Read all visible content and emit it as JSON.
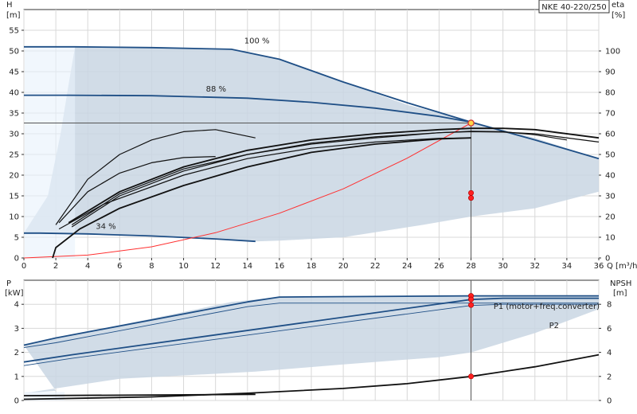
{
  "chart_data": [
    {
      "type": "line",
      "title": "NKE 40-220/250",
      "ylabel": "H",
      "yunit": "[m]",
      "y2label": "eta",
      "y2unit": "[%]",
      "xlabel": "Q",
      "xunit": "[m³/h]",
      "xlim": [
        0,
        36
      ],
      "ylim": [
        0,
        60
      ],
      "y2lim": [
        0,
        120
      ],
      "x_ticks": [
        0,
        2,
        4,
        6,
        8,
        10,
        12,
        14,
        16,
        18,
        20,
        22,
        24,
        26,
        28,
        30,
        32,
        34,
        36
      ],
      "y_ticks": [
        0,
        5,
        10,
        15,
        20,
        25,
        30,
        35,
        40,
        45,
        50,
        55
      ],
      "y2_ticks": [
        0,
        10,
        20,
        30,
        40,
        50,
        60,
        70,
        80,
        90,
        100
      ],
      "grid": true,
      "operating_point": {
        "q": 28,
        "h": 32.6,
        "eta_points": [
          31.4,
          29.0
        ]
      },
      "speed_labels": [
        {
          "text": "100 %",
          "q": 13.8,
          "h": 51.8
        },
        {
          "text": "88 %",
          "q": 11.4,
          "h": 40.2
        },
        {
          "text": "34 %",
          "q": 4.5,
          "h": 7.0
        }
      ],
      "operating_range": {
        "q": [
          0,
          3.2,
          13,
          16,
          20,
          24,
          28,
          32,
          36,
          36,
          32,
          28,
          25,
          20,
          16,
          14.5,
          6,
          0,
          1.5,
          2.3,
          2.8,
          3.2
        ],
        "h": [
          51,
          51,
          50.5,
          48,
          42.5,
          37,
          33,
          29,
          24,
          16,
          12,
          10,
          8,
          5,
          4.2,
          4,
          5.5,
          6,
          15,
          30,
          42,
          51
        ]
      },
      "series": [
        {
          "name": "",
          "role": "head-100",
          "q": [
            0,
            3.2,
            8,
            13,
            16,
            20,
            24,
            28,
            32,
            36
          ],
          "h": [
            51,
            51,
            50.8,
            50.4,
            48,
            42.5,
            37.5,
            32.8,
            28.5,
            24
          ]
        },
        {
          "name": "",
          "role": "head-88",
          "q": [
            0,
            2.8,
            8,
            14,
            18,
            22,
            26,
            28
          ],
          "h": [
            39.3,
            39.3,
            39.2,
            38.6,
            37.6,
            36.2,
            34.2,
            32.8
          ]
        },
        {
          "name": "",
          "role": "head-34",
          "q": [
            0,
            1,
            4,
            8,
            12,
            14.5
          ],
          "h": [
            6,
            6,
            5.8,
            5.3,
            4.6,
            4
          ]
        },
        {
          "name": "",
          "role": "system-curve",
          "q": [
            0,
            4,
            8,
            12,
            16,
            20,
            24,
            28
          ],
          "h": [
            0,
            0.7,
            2.7,
            6.1,
            10.8,
            16.7,
            24.1,
            32.6
          ]
        },
        {
          "name": "",
          "role": "eta",
          "q": [
            2,
            4,
            6,
            8,
            10,
            12,
            14.5
          ],
          "eta": [
            16,
            38,
            50,
            57,
            61,
            62,
            58
          ]
        },
        {
          "name": "",
          "role": "eta",
          "q": [
            2.2,
            4,
            6,
            8,
            10,
            12
          ],
          "eta": [
            17,
            32,
            41,
            46,
            48.5,
            49
          ]
        },
        {
          "name": "",
          "role": "eta",
          "q": [
            2.8,
            6,
            10,
            14,
            18,
            22,
            26,
            28,
            30,
            32,
            36
          ],
          "eta": [
            17,
            32,
            44,
            52,
            57,
            60,
            62,
            62.6,
            62.6,
            62,
            58
          ]
        },
        {
          "name": "",
          "role": "eta",
          "q": [
            3,
            6,
            10,
            14,
            18,
            22,
            26,
            28,
            30,
            32,
            36
          ],
          "eta": [
            15,
            30,
            42,
            50,
            55,
            58,
            60.5,
            61,
            60.8,
            60,
            56
          ]
        },
        {
          "name": "",
          "role": "eta",
          "q": [
            3,
            6,
            10,
            14,
            18,
            22,
            26,
            28,
            30,
            32,
            34
          ],
          "eta": [
            16,
            31,
            43,
            50,
            55.5,
            58.5,
            60.5,
            61.2,
            61,
            59.5,
            57
          ]
        },
        {
          "name": "",
          "role": "eta",
          "q": [
            1.8,
            2,
            3.5,
            6,
            10,
            14,
            18,
            22,
            26,
            28
          ],
          "eta": [
            0,
            5,
            14,
            24,
            35,
            44,
            51,
            55,
            57.5,
            58
          ]
        },
        {
          "name": "",
          "role": "eta",
          "q": [
            2.2,
            5,
            10,
            14,
            18,
            22,
            26,
            28
          ],
          "eta": [
            14,
            26,
            40,
            48,
            53,
            56,
            57.8,
            58
          ]
        }
      ]
    },
    {
      "type": "line",
      "ylabel": "P",
      "yunit": "[kW]",
      "y2label": "NPSH",
      "y2unit": "[m]",
      "xlim": [
        0,
        36
      ],
      "ylim": [
        0,
        5
      ],
      "y2lim": [
        0,
        10
      ],
      "y_ticks": [
        0,
        1,
        2,
        3,
        4
      ],
      "y2_ticks": [
        0,
        2,
        4,
        6,
        8
      ],
      "operating_point": {
        "q": 28,
        "p": [
          4.35,
          4.2,
          3.97
        ],
        "npsh": 2.0
      },
      "power_range": {
        "q": [
          0,
          2,
          8,
          13,
          16,
          28,
          36,
          36,
          32,
          28,
          26,
          20,
          14.5,
          6,
          0,
          2
        ],
        "p": [
          2.3,
          2.6,
          3.4,
          4.1,
          4.3,
          4.35,
          4.35,
          3.8,
          2.8,
          2.0,
          1.8,
          1.5,
          1.2,
          0.9,
          0.3,
          0.4
        ]
      },
      "series": [
        {
          "name": "P1 (motor+freq.converter)",
          "q": [
            0,
            2,
            14,
            16,
            28,
            36
          ],
          "p": [
            2.3,
            2.6,
            4.1,
            4.3,
            4.35,
            4.35
          ]
        },
        {
          "name": "",
          "q": [
            0,
            2,
            14,
            16,
            28,
            36
          ],
          "p": [
            2.2,
            2.4,
            3.9,
            4.05,
            4.05,
            4.05
          ]
        },
        {
          "name": "",
          "q": [
            0,
            3,
            28,
            30,
            36
          ],
          "p": [
            1.6,
            1.9,
            4.2,
            4.25,
            4.25
          ]
        },
        {
          "name": "P2",
          "q": [
            0,
            3,
            28,
            30,
            36
          ],
          "p": [
            1.45,
            1.75,
            3.95,
            4.0,
            4.0
          ]
        },
        {
          "name": "",
          "q": [
            0,
            14.5
          ],
          "p": [
            0.2,
            0.25
          ]
        },
        {
          "name": "",
          "role": "npsh",
          "q": [
            0,
            8,
            14,
            20,
            24,
            28,
            32,
            36
          ],
          "npsh": [
            0.1,
            0.3,
            0.6,
            1.0,
            1.4,
            2.0,
            2.8,
            3.8
          ]
        }
      ]
    }
  ]
}
